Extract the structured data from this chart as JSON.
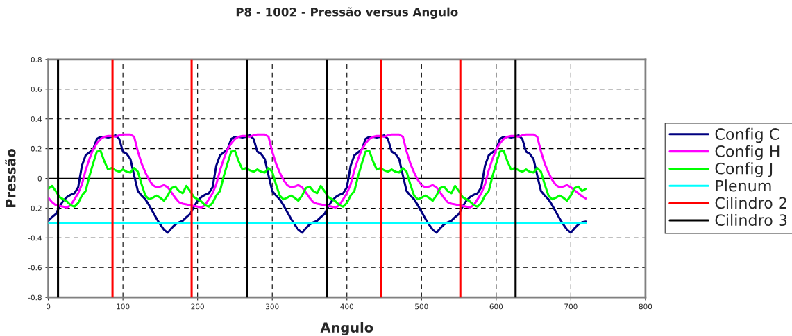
{
  "chart_data": {
    "type": "line",
    "title": "P8 - 1002 - Pressão versus Angulo",
    "xlabel": "Angulo",
    "ylabel": "Pressão",
    "x": [
      0,
      5,
      10,
      15,
      20,
      25,
      30,
      35,
      40,
      45,
      50,
      55,
      60,
      65,
      70,
      75,
      80,
      85,
      90,
      95,
      100,
      105,
      110,
      115,
      120,
      125,
      130,
      135,
      140,
      145,
      150,
      155,
      160,
      165,
      170,
      175,
      180,
      185,
      190,
      195,
      200,
      205,
      210,
      215,
      220,
      225,
      230,
      235,
      240,
      245,
      250,
      255,
      260,
      265,
      270,
      275,
      280,
      285,
      290,
      295,
      300,
      305,
      310,
      315,
      320,
      325,
      330,
      335,
      340,
      345,
      350,
      355,
      360,
      365,
      370,
      375,
      380,
      385,
      390,
      395,
      400,
      405,
      410,
      415,
      420,
      425,
      430,
      435,
      440,
      445,
      450,
      455,
      460,
      465,
      470,
      475,
      480,
      485,
      490,
      495,
      500,
      505,
      510,
      515,
      520,
      525,
      530,
      535,
      540,
      545,
      550,
      555,
      560,
      565,
      570,
      575,
      580,
      585,
      590,
      595,
      600,
      605,
      610,
      615,
      620,
      625,
      630,
      635,
      640,
      645,
      650,
      655,
      660,
      665,
      670,
      675,
      680,
      685,
      690,
      695,
      700,
      705,
      710,
      715,
      720
    ],
    "series": [
      {
        "name": "Config C",
        "color": "#000080",
        "values": [
          -0.285,
          -0.26,
          -0.24,
          -0.19,
          -0.15,
          -0.125,
          -0.11,
          -0.1,
          -0.06,
          0.085,
          0.155,
          0.175,
          0.195,
          0.265,
          0.28,
          0.28,
          0.275,
          0.28,
          0.29,
          0.265,
          0.18,
          0.165,
          0.13,
          0.02,
          -0.085,
          -0.115,
          -0.14,
          -0.18,
          -0.225,
          -0.27,
          -0.31,
          -0.345,
          -0.365,
          -0.335,
          -0.31,
          -0.295,
          -0.285,
          -0.26,
          -0.24,
          -0.19,
          -0.15,
          -0.125,
          -0.11,
          -0.1,
          -0.06,
          0.085,
          0.155,
          0.175,
          0.195,
          0.265,
          0.28,
          0.28,
          0.275,
          0.28,
          0.29,
          0.265,
          0.18,
          0.165,
          0.13,
          0.02,
          -0.085,
          -0.115,
          -0.14,
          -0.18,
          -0.225,
          -0.27,
          -0.31,
          -0.345,
          -0.365,
          -0.335,
          -0.31,
          -0.295,
          -0.285,
          -0.26,
          -0.24,
          -0.19,
          -0.15,
          -0.125,
          -0.11,
          -0.1,
          -0.06,
          0.085,
          0.155,
          0.175,
          0.195,
          0.265,
          0.28,
          0.28,
          0.275,
          0.28,
          0.29,
          0.265,
          0.18,
          0.165,
          0.13,
          0.02,
          -0.085,
          -0.115,
          -0.14,
          -0.18,
          -0.225,
          -0.27,
          -0.31,
          -0.345,
          -0.365,
          -0.335,
          -0.31,
          -0.295,
          -0.285,
          -0.26,
          -0.24,
          -0.19,
          -0.15,
          -0.125,
          -0.11,
          -0.1,
          -0.06,
          0.085,
          0.155,
          0.175,
          0.195,
          0.265,
          0.28,
          0.28,
          0.275,
          0.28,
          0.29,
          0.265,
          0.18,
          0.165,
          0.13,
          0.02,
          -0.085,
          -0.115,
          -0.14,
          -0.18,
          -0.225,
          -0.27,
          -0.31,
          -0.345,
          -0.365,
          -0.335,
          -0.31,
          -0.295,
          -0.29
        ]
      },
      {
        "name": "Config H",
        "color": "#ff00ff",
        "values": [
          -0.13,
          -0.16,
          -0.18,
          -0.185,
          -0.19,
          -0.195,
          -0.18,
          -0.14,
          -0.1,
          -0.04,
          0.055,
          0.13,
          0.195,
          0.235,
          0.265,
          0.28,
          0.285,
          0.285,
          0.28,
          0.29,
          0.295,
          0.295,
          0.295,
          0.28,
          0.18,
          0.1,
          0.04,
          -0.01,
          -0.045,
          -0.06,
          -0.055,
          -0.045,
          -0.06,
          -0.095,
          -0.13,
          -0.16,
          -0.17,
          -0.175,
          -0.18,
          -0.185,
          -0.19,
          -0.195,
          -0.18,
          -0.14,
          -0.1,
          -0.04,
          0.055,
          0.13,
          0.195,
          0.235,
          0.265,
          0.28,
          0.285,
          0.285,
          0.28,
          0.29,
          0.295,
          0.295,
          0.295,
          0.28,
          0.18,
          0.1,
          0.04,
          -0.01,
          -0.045,
          -0.06,
          -0.055,
          -0.045,
          -0.06,
          -0.095,
          -0.13,
          -0.16,
          -0.17,
          -0.175,
          -0.18,
          -0.185,
          -0.19,
          -0.195,
          -0.18,
          -0.14,
          -0.1,
          -0.04,
          0.055,
          0.13,
          0.195,
          0.235,
          0.265,
          0.28,
          0.285,
          0.285,
          0.28,
          0.29,
          0.295,
          0.295,
          0.295,
          0.28,
          0.18,
          0.1,
          0.04,
          -0.01,
          -0.045,
          -0.06,
          -0.055,
          -0.045,
          -0.06,
          -0.095,
          -0.13,
          -0.16,
          -0.17,
          -0.175,
          -0.18,
          -0.185,
          -0.19,
          -0.195,
          -0.18,
          -0.14,
          -0.1,
          -0.04,
          0.055,
          0.13,
          0.195,
          0.235,
          0.265,
          0.28,
          0.285,
          0.285,
          0.28,
          0.29,
          0.295,
          0.295,
          0.295,
          0.28,
          0.18,
          0.1,
          0.04,
          -0.01,
          -0.045,
          -0.06,
          -0.055,
          -0.045,
          -0.06,
          -0.08,
          -0.1,
          -0.12,
          -0.135
        ]
      },
      {
        "name": "Config J",
        "color": "#00ff00",
        "values": [
          -0.07,
          -0.05,
          -0.085,
          -0.125,
          -0.14,
          -0.155,
          -0.18,
          -0.19,
          -0.165,
          -0.115,
          -0.085,
          0.015,
          0.1,
          0.18,
          0.185,
          0.115,
          0.06,
          0.07,
          0.055,
          0.045,
          0.06,
          0.045,
          0.04,
          0.07,
          0.045,
          -0.04,
          -0.115,
          -0.14,
          -0.13,
          -0.115,
          -0.13,
          -0.15,
          -0.115,
          -0.065,
          -0.055,
          -0.085,
          -0.1,
          -0.05,
          -0.085,
          -0.125,
          -0.14,
          -0.155,
          -0.18,
          -0.19,
          -0.165,
          -0.115,
          -0.085,
          0.015,
          0.1,
          0.18,
          0.185,
          0.115,
          0.06,
          0.07,
          0.055,
          0.045,
          0.06,
          0.045,
          0.04,
          0.07,
          0.045,
          -0.04,
          -0.115,
          -0.14,
          -0.13,
          -0.115,
          -0.13,
          -0.15,
          -0.115,
          -0.065,
          -0.055,
          -0.085,
          -0.1,
          -0.05,
          -0.085,
          -0.125,
          -0.14,
          -0.155,
          -0.18,
          -0.19,
          -0.165,
          -0.115,
          -0.085,
          0.015,
          0.1,
          0.18,
          0.185,
          0.115,
          0.06,
          0.07,
          0.055,
          0.045,
          0.06,
          0.045,
          0.04,
          0.07,
          0.045,
          -0.04,
          -0.115,
          -0.14,
          -0.13,
          -0.115,
          -0.13,
          -0.15,
          -0.115,
          -0.065,
          -0.055,
          -0.085,
          -0.1,
          -0.05,
          -0.085,
          -0.125,
          -0.14,
          -0.155,
          -0.18,
          -0.19,
          -0.165,
          -0.115,
          -0.085,
          0.015,
          0.1,
          0.18,
          0.185,
          0.115,
          0.06,
          0.07,
          0.055,
          0.045,
          0.06,
          0.045,
          0.04,
          0.07,
          0.045,
          -0.04,
          -0.115,
          -0.14,
          -0.13,
          -0.115,
          -0.13,
          -0.15,
          -0.115,
          -0.065,
          -0.055,
          -0.085,
          -0.07
        ]
      },
      {
        "name": "Plenum",
        "color": "#00ffff",
        "x": [
          0,
          720
        ],
        "values": [
          -0.3,
          -0.3
        ]
      },
      {
        "name": "Cilindro 2",
        "color": "#ff0000",
        "x": [
          86,
          86,
          null,
          192,
          192,
          null,
          446,
          446,
          null,
          552,
          552
        ],
        "values": [
          -0.8,
          0.8,
          null,
          -0.8,
          0.8,
          null,
          -0.8,
          0.8,
          null,
          -0.8,
          0.8
        ]
      },
      {
        "name": "Cilindro 3",
        "color": "#000000",
        "x": [
          13,
          13,
          null,
          266,
          266,
          null,
          373,
          373,
          null,
          626,
          626
        ],
        "values": [
          -0.8,
          0.8,
          null,
          -0.8,
          0.8,
          null,
          -0.8,
          0.8,
          null,
          -0.8,
          0.8
        ]
      }
    ],
    "ref_lines": [
      {
        "axis": "y",
        "value": 0,
        "color": "#000000"
      }
    ],
    "xlim": [
      0,
      800
    ],
    "xticks": [
      0,
      100,
      200,
      300,
      400,
      500,
      600,
      700,
      800
    ],
    "ylim": [
      -0.8,
      0.8
    ],
    "yticks": [
      -0.8,
      -0.6,
      -0.4,
      -0.2,
      0,
      0.2,
      0.4,
      0.6,
      0.8
    ],
    "grid": true,
    "legend": "right",
    "line_style": "solid",
    "marker": "none"
  }
}
